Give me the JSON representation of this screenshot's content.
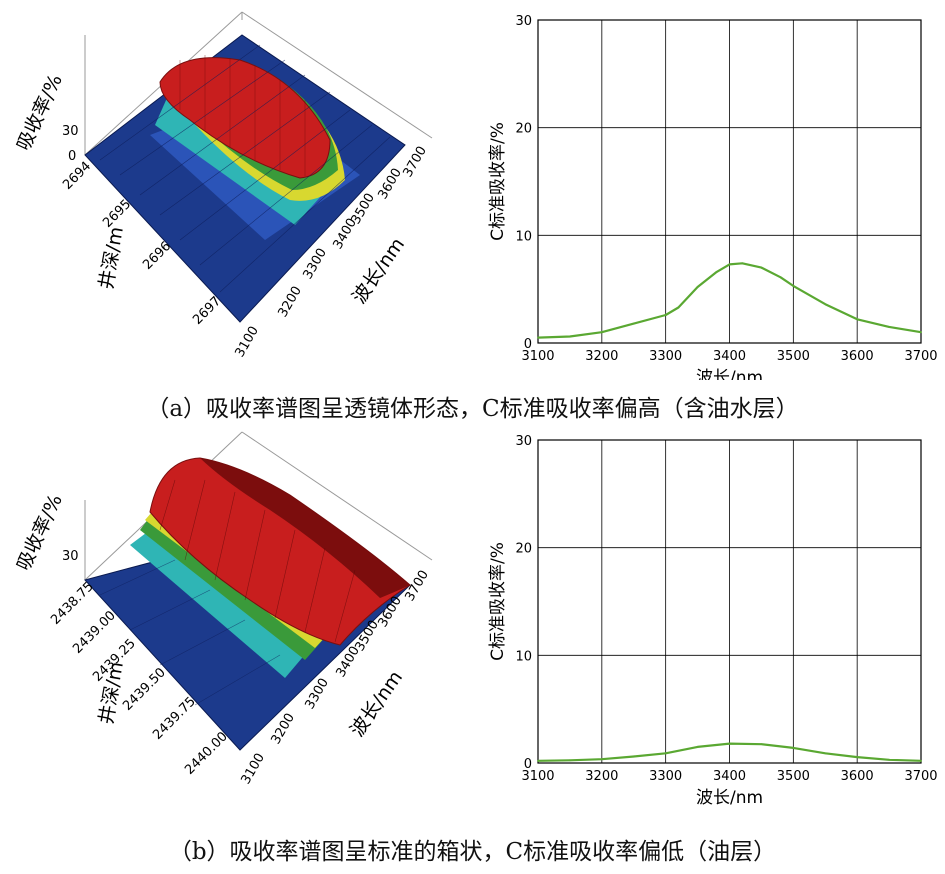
{
  "panels": [
    {
      "caption": "（a）吸收率谱图呈透镜体形态，C标准吸收率偏高（含油水层）",
      "surface": {
        "z_label": "吸收率/%",
        "z_ticks": [
          "30",
          "0"
        ],
        "depth_label": "井深/m",
        "depth_ticks": [
          "2694",
          "2695",
          "2696",
          "2697"
        ],
        "wavelength_label": "波长/nm",
        "wavelength_ticks": [
          "3100",
          "3200",
          "3300",
          "3400",
          "3500",
          "3600",
          "3700"
        ],
        "shape": "lens"
      }
    },
    {
      "caption": "（b）吸收率谱图呈标准的箱状，C标准吸收率偏低（油层）",
      "surface": {
        "z_label": "吸收率/%",
        "z_ticks": [
          "30"
        ],
        "depth_label": "井深/m",
        "depth_ticks": [
          "2438.75",
          "2439.00",
          "2439.25",
          "2439.50",
          "2439.75",
          "2440.00"
        ],
        "wavelength_label": "波长/nm",
        "wavelength_ticks": [
          "3100",
          "3200",
          "3300",
          "3400",
          "3500",
          "3600",
          "3700"
        ],
        "shape": "box"
      }
    }
  ],
  "chart_data": [
    {
      "type": "line",
      "title": "",
      "xlabel": "波长/nm",
      "ylabel": "C标准吸收率/%",
      "xlim": [
        3100,
        3700
      ],
      "ylim": [
        0,
        30
      ],
      "x_ticks": [
        "3100",
        "3200",
        "3300",
        "3400",
        "3500",
        "3600",
        "3700"
      ],
      "y_ticks": [
        "0",
        "10",
        "20",
        "30"
      ],
      "grid": true,
      "line_color": "#5aa832",
      "series": [
        {
          "x": [
            3100,
            3150,
            3200,
            3250,
            3300,
            3320,
            3350,
            3380,
            3400,
            3420,
            3450,
            3480,
            3500,
            3550,
            3600,
            3650,
            3700
          ],
          "values": [
            0.5,
            0.6,
            1.0,
            1.8,
            2.6,
            3.3,
            5.2,
            6.6,
            7.3,
            7.4,
            7.0,
            6.1,
            5.3,
            3.6,
            2.2,
            1.5,
            1.0
          ]
        }
      ]
    },
    {
      "type": "line",
      "title": "",
      "xlabel": "波长/nm",
      "ylabel": "C标准吸收率/%",
      "xlim": [
        3100,
        3700
      ],
      "ylim": [
        0,
        30
      ],
      "x_ticks": [
        "3100",
        "3200",
        "3300",
        "3400",
        "3500",
        "3600",
        "3700"
      ],
      "y_ticks": [
        "0",
        "10",
        "20",
        "30"
      ],
      "grid": true,
      "line_color": "#5aa832",
      "series": [
        {
          "x": [
            3100,
            3150,
            3200,
            3250,
            3300,
            3350,
            3400,
            3450,
            3500,
            3550,
            3600,
            3650,
            3700
          ],
          "values": [
            0.2,
            0.25,
            0.35,
            0.6,
            0.9,
            1.5,
            1.8,
            1.75,
            1.4,
            0.9,
            0.55,
            0.3,
            0.2
          ]
        }
      ]
    }
  ]
}
